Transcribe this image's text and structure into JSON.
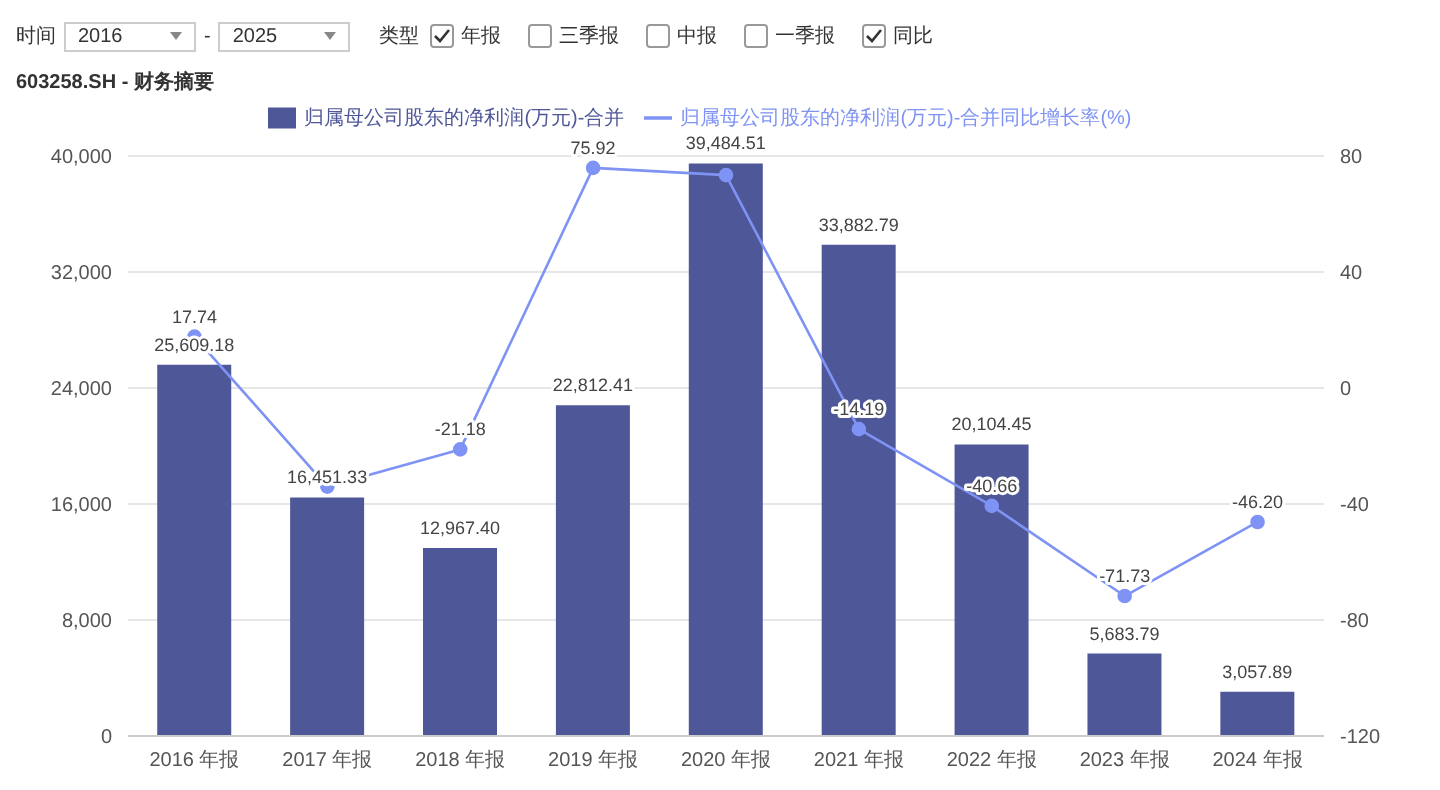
{
  "chart_data": {
    "type": "bar",
    "title": "603258.SH - 财务摘要",
    "annotations": [
      "时间",
      "2016",
      "-",
      "2025",
      "类型",
      "年报",
      "三季报",
      "中报",
      "一季报",
      "同比"
    ],
    "categories": [
      "2016 年报",
      "2017 年报",
      "2018 年报",
      "2019 年报",
      "2020 年报",
      "2021 年报",
      "2022 年报",
      "2023 年报",
      "2024 年报"
    ],
    "series": [
      {
        "name": "归属母公司股东的净利润(万元)-合并",
        "color": "#4e5797",
        "values": [
          25609.18,
          16451.33,
          12967.4,
          22812.41,
          39484.51,
          33882.79,
          20104.45,
          5683.79,
          3057.89
        ],
        "value_labels": [
          "25,609.18",
          "16,451.33",
          "12,967.40",
          "22,812.41",
          "39,484.51",
          "33,882.79",
          "20,104.45",
          "5,683.79",
          "3,057.89"
        ]
      },
      {
        "name": "归属母公司股东的净利润(万元)-合并同比增长率(%)",
        "type": "line",
        "axis": "y2",
        "color": "#7f93f5",
        "values": [
          17.74,
          -34.0,
          -21.18,
          75.92,
          73.4,
          -14.19,
          -40.66,
          -71.73,
          -46.2
        ],
        "value_labels": [
          "17.74",
          null,
          "-21.18",
          "75.92",
          null,
          "-14.19",
          "-40.66",
          "-71.73",
          "-46.20"
        ]
      }
    ],
    "ylim": [
      0,
      40000
    ],
    "yticks": [
      {
        "value": 0,
        "label": "0"
      },
      {
        "value": 8000,
        "label": "8,000"
      },
      {
        "value": 16000,
        "label": "16,000"
      },
      {
        "value": 24000,
        "label": "24,000"
      },
      {
        "value": 32000,
        "label": "32,000"
      },
      {
        "value": 40000,
        "label": "40,000"
      }
    ],
    "y2lim": [
      -120,
      80
    ],
    "y2ticks": [
      -120,
      -80,
      -40,
      0,
      40,
      80
    ],
    "grid": "y",
    "legend": "top",
    "marker": "circle"
  }
}
